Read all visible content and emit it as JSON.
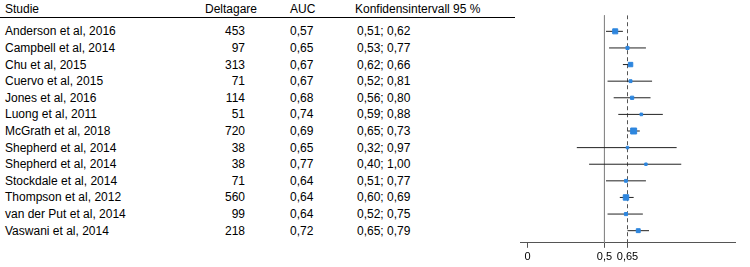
{
  "chart_data": {
    "type": "forest",
    "columns": [
      "Studie",
      "Deltagare",
      "AUC",
      "Konfidensintervall 95 %"
    ],
    "categories": [
      "Anderson et al, 2016",
      "Campbell et al, 2014",
      "Chu et al, 2015",
      "Cuervo et al, 2015",
      "Jones et al, 2016",
      "Luong et al, 2011",
      "McGrath et al, 2018",
      "Shepherd et al, 2014",
      "Shepherd et al, 2014",
      "Stockdale et al, 2014",
      "Thompson et al, 2012",
      "van der Put et al, 2014",
      "Vaswani et al, 2014"
    ],
    "participants": [
      453,
      97,
      313,
      71,
      114,
      51,
      720,
      38,
      38,
      71,
      560,
      99,
      218
    ],
    "values": [
      0.57,
      0.65,
      0.67,
      0.67,
      0.68,
      0.74,
      0.69,
      0.65,
      0.77,
      0.64,
      0.64,
      0.64,
      0.72
    ],
    "value_labels": [
      "0,57",
      "0,65",
      "0,67",
      "0,67",
      "0,68",
      "0,74",
      "0,69",
      "0,65",
      "0,77",
      "0,64",
      "0,64",
      "0,64",
      "0,72"
    ],
    "ci_low": [
      0.51,
      0.53,
      0.62,
      0.52,
      0.56,
      0.59,
      0.65,
      0.32,
      0.4,
      0.51,
      0.6,
      0.52,
      0.65
    ],
    "ci_high": [
      0.62,
      0.77,
      0.66,
      0.81,
      0.8,
      0.88,
      0.73,
      0.97,
      1.0,
      0.77,
      0.69,
      0.75,
      0.79
    ],
    "ci_labels": [
      "0,51; 0,62",
      "0,53; 0,77",
      "0,62; 0,66",
      "0,52; 0,81",
      "0,56; 0,80",
      "0,59; 0,88",
      "0,65; 0,73",
      "0,32; 0,97",
      "0,40; 1,00",
      "0,51; 0,77",
      "0,60; 0,69",
      "0,52; 0,75",
      "0,65; 0,79"
    ],
    "color": "#2e86de",
    "marker": "square",
    "xlim": [
      -0.05,
      1.35
    ],
    "xticks": [
      0,
      {
        "value": 0.5,
        "label": "0,5"
      },
      {
        "value": 0.65,
        "label": "0,65"
      }
    ],
    "reference_lines": [
      {
        "value": 0.5,
        "line_style": "solid"
      },
      {
        "value": 0.65,
        "line_style": "dashed"
      }
    ]
  }
}
